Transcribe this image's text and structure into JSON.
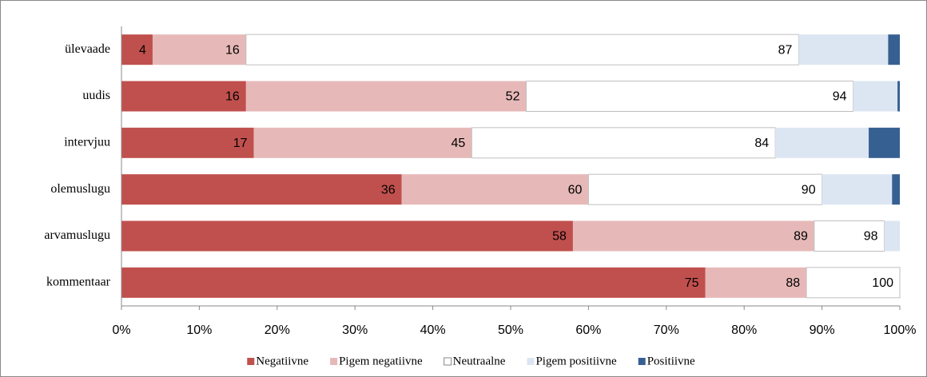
{
  "chart_data": {
    "type": "stacked_barh",
    "categories": [
      "ülevaade",
      "uudis",
      "intervjuu",
      "olemuslugu",
      "arvamuslugu",
      "kommentaar"
    ],
    "series": [
      {
        "name": "Negatiivne",
        "color": "#c0504d",
        "values": [
          4,
          16,
          17,
          36,
          58,
          75
        ],
        "data_labels": [
          "4",
          "16",
          "17",
          "36",
          "58",
          "75"
        ]
      },
      {
        "name": "Pigem negatiivne",
        "color": "#e6b9b8",
        "values": [
          12,
          36,
          28,
          24,
          31,
          13
        ],
        "data_labels": [
          "16",
          "52",
          "45",
          "60",
          "89",
          "88"
        ]
      },
      {
        "name": "Neutraalne",
        "color": "#ffffff",
        "values": [
          71,
          42,
          39,
          30,
          9,
          12
        ],
        "data_labels": [
          "87",
          "94",
          "84",
          "90",
          "98",
          "100"
        ]
      },
      {
        "name": "Pigem positiivne",
        "color": "#dce6f2",
        "values": [
          11.5,
          5.7,
          12,
          9,
          2,
          0
        ]
      },
      {
        "name": "Positiivne",
        "color": "#376092",
        "values": [
          1.5,
          0.3,
          4,
          1,
          0,
          0
        ]
      }
    ],
    "xlim": [
      0,
      100
    ],
    "xticks": [
      {
        "value": 0,
        "label": "0%"
      },
      {
        "value": 10,
        "label": "10%"
      },
      {
        "value": 20,
        "label": "20%"
      },
      {
        "value": 30,
        "label": "30%"
      },
      {
        "value": 40,
        "label": "40%"
      },
      {
        "value": 50,
        "label": "50%"
      },
      {
        "value": 60,
        "label": "60%"
      },
      {
        "value": 70,
        "label": "70%"
      },
      {
        "value": 80,
        "label": "80%"
      },
      {
        "value": 90,
        "label": "90%"
      },
      {
        "value": 100,
        "label": "100%"
      }
    ]
  }
}
